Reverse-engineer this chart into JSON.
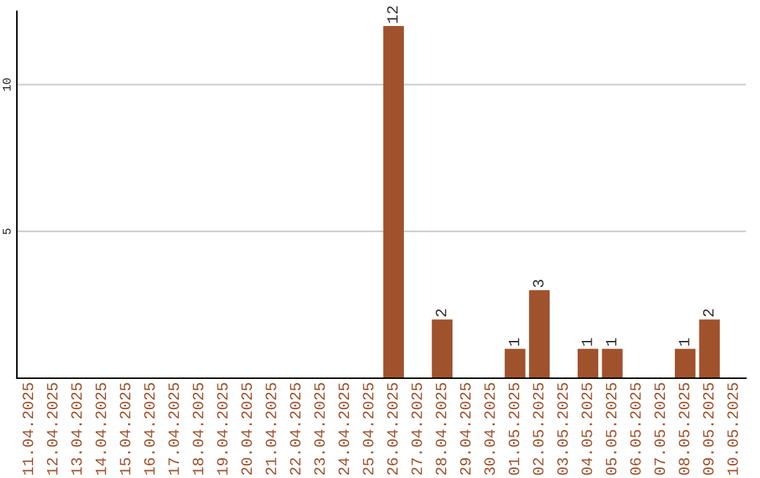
{
  "chart_data": {
    "type": "bar",
    "categories": [
      "11.04.2025",
      "12.04.2025",
      "13.04.2025",
      "14.04.2025",
      "15.04.2025",
      "16.04.2025",
      "17.04.2025",
      "18.04.2025",
      "19.04.2025",
      "20.04.2025",
      "21.04.2025",
      "22.04.2025",
      "23.04.2025",
      "24.04.2025",
      "25.04.2025",
      "26.04.2025",
      "27.04.2025",
      "28.04.2025",
      "29.04.2025",
      "30.04.2025",
      "01.05.2025",
      "02.05.2025",
      "03.05.2025",
      "04.05.2025",
      "05.05.2025",
      "06.05.2025",
      "07.05.2025",
      "08.05.2025",
      "09.05.2025",
      "10.05.2025"
    ],
    "values": [
      0,
      0,
      0,
      0,
      0,
      0,
      0,
      0,
      0,
      0,
      0,
      0,
      0,
      0,
      0,
      12,
      0,
      2,
      0,
      0,
      1,
      3,
      0,
      1,
      1,
      0,
      0,
      1,
      2,
      0
    ],
    "value_labels": [
      null,
      null,
      null,
      null,
      null,
      null,
      null,
      null,
      null,
      null,
      null,
      null,
      null,
      null,
      null,
      "12",
      null,
      "2",
      null,
      null,
      "1",
      "3",
      null,
      "1",
      "1",
      null,
      null,
      "1",
      "2",
      null
    ],
    "color": "#a0522d",
    "ylim": [
      0,
      12.5
    ],
    "yticks": [
      5,
      10
    ],
    "grid": "y"
  }
}
